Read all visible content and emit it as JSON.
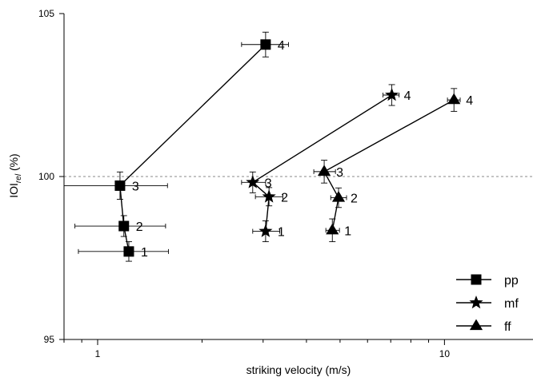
{
  "chart_data": {
    "type": "scatter",
    "xlabel": "striking velocity (m/s)",
    "ylabel": {
      "prefix": "IOI",
      "subscript": "rel",
      "suffix": " (%)"
    },
    "x_scale": "log",
    "xlim": [
      0.8,
      18.0
    ],
    "ylim": [
      95,
      105
    ],
    "x_ticks": [
      {
        "value": 1,
        "label": "1"
      },
      {
        "value": 10,
        "label": "10"
      }
    ],
    "y_ticks": [
      {
        "value": 95,
        "label": "95"
      },
      {
        "value": 100,
        "label": "100"
      },
      {
        "value": 105,
        "label": "105"
      }
    ],
    "reference_line": {
      "y": 100,
      "style": "dashed"
    },
    "legend_position": "bottom-right",
    "series": [
      {
        "name": "pp",
        "marker": "square",
        "points": [
          {
            "label": "1",
            "x": 1.23,
            "y": 97.7,
            "xerr": [
              0.88,
              1.6
            ],
            "yerr": 0.3
          },
          {
            "label": "2",
            "x": 1.19,
            "y": 98.48,
            "xerr": [
              0.86,
              1.57
            ],
            "yerr": 0.32
          },
          {
            "label": "3",
            "x": 1.16,
            "y": 99.72,
            "xerr": [
              0.8,
              1.59
            ],
            "yerr": 0.42
          },
          {
            "label": "4",
            "x": 3.05,
            "y": 104.05,
            "xerr": [
              2.6,
              3.55
            ],
            "yerr": 0.38
          }
        ]
      },
      {
        "name": "mf",
        "marker": "star",
        "points": [
          {
            "label": "1",
            "x": 3.05,
            "y": 98.32,
            "xerr": [
              2.8,
              3.35
            ],
            "yerr": 0.32
          },
          {
            "label": "2",
            "x": 3.12,
            "y": 99.38,
            "xerr": [
              2.85,
              3.42
            ],
            "yerr": 0.28
          },
          {
            "label": "3",
            "x": 2.8,
            "y": 99.82,
            "xerr": [
              2.6,
              3.05
            ],
            "yerr": 0.32
          },
          {
            "label": "4",
            "x": 7.05,
            "y": 102.5,
            "xerr": [
              6.65,
              7.4
            ],
            "yerr": 0.32
          }
        ]
      },
      {
        "name": "ff",
        "marker": "triangle",
        "points": [
          {
            "label": "1",
            "x": 4.75,
            "y": 98.35,
            "xerr": [
              4.55,
              4.98
            ],
            "yerr": 0.35
          },
          {
            "label": "2",
            "x": 4.95,
            "y": 99.35,
            "xerr": [
              4.7,
              5.22
            ],
            "yerr": 0.3
          },
          {
            "label": "3",
            "x": 4.5,
            "y": 100.15,
            "xerr": [
              4.2,
              4.85
            ],
            "yerr": 0.35
          },
          {
            "label": "4",
            "x": 10.65,
            "y": 102.35,
            "xerr": [
              10.2,
              11.1
            ],
            "yerr": 0.35
          }
        ]
      }
    ]
  }
}
